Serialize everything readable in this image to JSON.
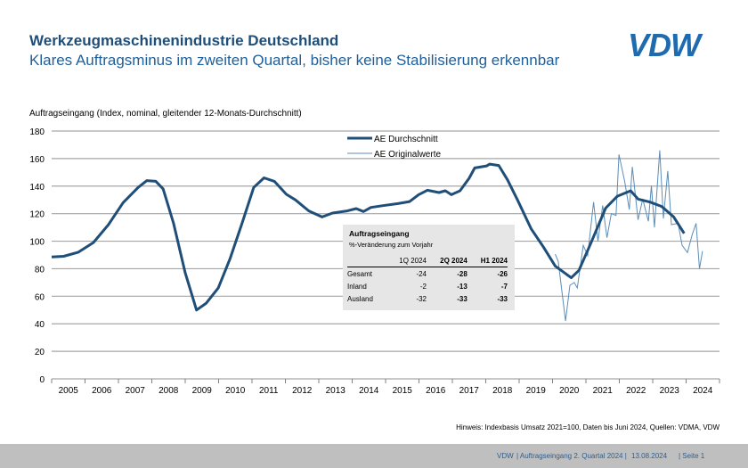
{
  "header": {
    "title": "Werkzeugmaschinenindustrie Deutschland",
    "subtitle": "Klares Auftragsminus im zweiten Quartal, bisher keine Stabilisierung erkennbar",
    "logo": "VDW"
  },
  "chart_data": {
    "type": "line",
    "ylabel": "Auftragseingang (Index, nominal, gleitender 12-Monats-Durchschnitt)",
    "ylim": [
      0,
      180
    ],
    "yticks": [
      0,
      20,
      40,
      60,
      80,
      100,
      120,
      140,
      160,
      180
    ],
    "xticks": [
      "2005",
      "2006",
      "2007",
      "2008",
      "2009",
      "2010",
      "2011",
      "2012",
      "2013",
      "2014",
      "2015",
      "2016",
      "2017",
      "2018",
      "2019",
      "2020",
      "2021",
      "2022",
      "2023",
      "2024"
    ],
    "xlim": [
      2005,
      2025
    ],
    "grid": true,
    "legend": "top-center",
    "colors": {
      "avg": "#1f4e79",
      "orig": "#5b8db8"
    },
    "series": [
      {
        "name": "AE Durchschnitt",
        "points": [
          [
            2005.0,
            88.5
          ],
          [
            2005.36,
            89
          ],
          [
            2005.8,
            92
          ],
          [
            2006.25,
            99
          ],
          [
            2006.7,
            112
          ],
          [
            2007.14,
            128
          ],
          [
            2007.59,
            139
          ],
          [
            2007.85,
            144
          ],
          [
            2008.12,
            143.5
          ],
          [
            2008.34,
            138
          ],
          [
            2008.65,
            113
          ],
          [
            2009.0,
            77
          ],
          [
            2009.34,
            50
          ],
          [
            2009.63,
            55
          ],
          [
            2009.99,
            66
          ],
          [
            2010.34,
            87
          ],
          [
            2010.7,
            113
          ],
          [
            2011.05,
            139
          ],
          [
            2011.36,
            146
          ],
          [
            2011.67,
            143.5
          ],
          [
            2012.03,
            134
          ],
          [
            2012.3,
            130
          ],
          [
            2012.7,
            122
          ],
          [
            2013.1,
            117.6
          ],
          [
            2013.41,
            120.4
          ],
          [
            2013.85,
            122
          ],
          [
            2014.12,
            123.7
          ],
          [
            2014.34,
            121.5
          ],
          [
            2014.56,
            124.5
          ],
          [
            2014.92,
            125.8
          ],
          [
            2015.37,
            127.3
          ],
          [
            2015.72,
            128.8
          ],
          [
            2015.99,
            133.8
          ],
          [
            2016.25,
            137
          ],
          [
            2016.6,
            135.3
          ],
          [
            2016.79,
            136.6
          ],
          [
            2016.97,
            133.8
          ],
          [
            2017.23,
            136.6
          ],
          [
            2017.5,
            145.7
          ],
          [
            2017.67,
            153.2
          ],
          [
            2018.03,
            154.7
          ],
          [
            2018.12,
            156
          ],
          [
            2018.39,
            155
          ],
          [
            2018.65,
            144.6
          ],
          [
            2018.95,
            130
          ],
          [
            2019.36,
            109
          ],
          [
            2019.72,
            96
          ],
          [
            2020.08,
            82
          ],
          [
            2020.56,
            73.4
          ],
          [
            2020.79,
            78.8
          ],
          [
            2021.14,
            98.2
          ],
          [
            2021.59,
            124
          ],
          [
            2021.94,
            132.7
          ],
          [
            2022.34,
            136.6
          ],
          [
            2022.56,
            130.6
          ],
          [
            2022.92,
            128.4
          ],
          [
            2023.27,
            125.2
          ],
          [
            2023.63,
            117.6
          ],
          [
            2023.94,
            105.7
          ]
        ]
      },
      {
        "name": "AE Originalwerte",
        "points": [
          [
            2020.08,
            90.6
          ],
          [
            2020.17,
            85.3
          ],
          [
            2020.39,
            42
          ],
          [
            2020.52,
            68
          ],
          [
            2020.65,
            70
          ],
          [
            2020.74,
            66
          ],
          [
            2020.92,
            97
          ],
          [
            2021.05,
            89.5
          ],
          [
            2021.23,
            128.4
          ],
          [
            2021.36,
            100
          ],
          [
            2021.5,
            126
          ],
          [
            2021.63,
            102.5
          ],
          [
            2021.76,
            120
          ],
          [
            2021.9,
            118.7
          ],
          [
            2021.99,
            163
          ],
          [
            2022.16,
            143.5
          ],
          [
            2022.3,
            123
          ],
          [
            2022.39,
            154
          ],
          [
            2022.56,
            115.5
          ],
          [
            2022.7,
            130.6
          ],
          [
            2022.87,
            114.4
          ],
          [
            2022.96,
            140.3
          ],
          [
            2023.05,
            110
          ],
          [
            2023.21,
            166
          ],
          [
            2023.32,
            116.5
          ],
          [
            2023.45,
            151
          ],
          [
            2023.56,
            112
          ],
          [
            2023.76,
            113
          ],
          [
            2023.88,
            97
          ],
          [
            2024.04,
            91.7
          ],
          [
            2024.18,
            104.7
          ],
          [
            2024.3,
            113
          ],
          [
            2024.4,
            80
          ],
          [
            2024.49,
            92.8
          ]
        ]
      }
    ]
  },
  "table": {
    "title": "Auftragseingang",
    "subtitle": "%-Veränderung zum Vorjahr",
    "columns": [
      "",
      "1Q 2024",
      "2Q 2024",
      "H1 2024"
    ],
    "rows": [
      [
        "Gesamt",
        "-24",
        "-28",
        "-26"
      ],
      [
        "Inland",
        "-2",
        "-13",
        "-7"
      ],
      [
        "Ausland",
        "-32",
        "-33",
        "-33"
      ]
    ]
  },
  "note": "Hinweis: Indexbasis Umsatz 2021=100, Daten bis Juni 2024, Quellen: VDMA, VDW",
  "footer": {
    "org": "VDW",
    "topic": "| Auftragseingang 2. Quartal 2024 |",
    "date": "13.08.2024",
    "page": "| Seite 1"
  }
}
